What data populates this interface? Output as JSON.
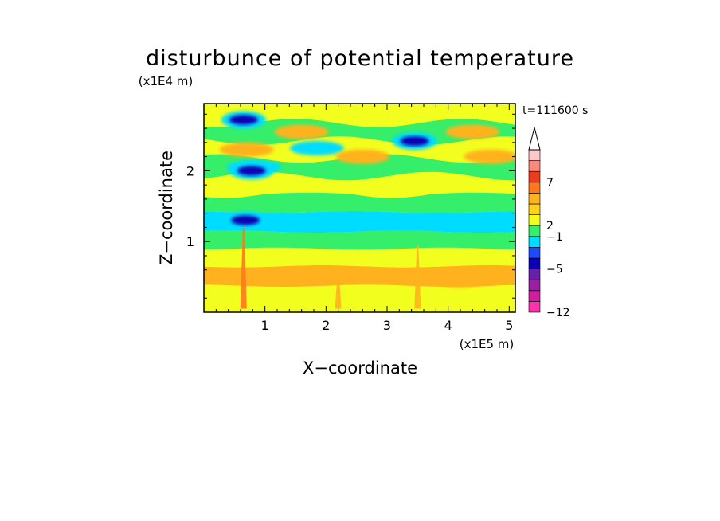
{
  "chart_data": {
    "type": "heatmap",
    "title": "disturbunce of potential temperature",
    "time_label": "t=111600 s",
    "xlabel": "X−coordinate",
    "ylabel": "Z−coordinate",
    "x_unit": "(x1E5 m)",
    "y_unit": "(x1E4 m)",
    "xlim": [
      0,
      5.1
    ],
    "ylim": [
      0,
      2.95
    ],
    "x_ticks": [
      1,
      2,
      3,
      4,
      5
    ],
    "y_ticks": [
      1,
      2
    ],
    "colorbar": {
      "labels": [
        "7",
        "2",
        "−1",
        "−5",
        "−12"
      ],
      "colors": [
        "#ff33aa",
        "#d21e9c",
        "#9b1fa0",
        "#6a1fa8",
        "#0b00b4",
        "#1e49ff",
        "#00dcff",
        "#35ee6a",
        "#f2ff1e",
        "#ffd21e",
        "#ffb21e",
        "#ff781e",
        "#ee3a1e",
        "#f78a7a",
        "#ffc8c8"
      ],
      "extend": "max"
    },
    "bands": [
      {
        "z": 0.08,
        "value": 0.8
      },
      {
        "z": 0.25,
        "value": 1.4
      },
      {
        "z": 0.5,
        "value": 2.2
      },
      {
        "z": 0.8,
        "value": 0.6
      },
      {
        "z": 1.0,
        "value": -0.3
      },
      {
        "z": 1.28,
        "value": -0.8
      },
      {
        "z": 1.55,
        "value": 0.4
      },
      {
        "z": 1.8,
        "value": 0.9
      },
      {
        "z": 2.05,
        "value": 0.2
      },
      {
        "z": 2.3,
        "value": 1.2
      },
      {
        "z": 2.55,
        "value": 0.3
      },
      {
        "z": 2.8,
        "value": 0.5
      }
    ],
    "anomalies": [
      {
        "x": 0.65,
        "z": 2.72,
        "value": -4.5
      },
      {
        "x": 0.7,
        "z": 2.3,
        "value": 2.4
      },
      {
        "x": 0.82,
        "z": 2.05,
        "value": -1.5
      },
      {
        "x": 0.78,
        "z": 2.0,
        "value": -5
      },
      {
        "x": 1.6,
        "z": 2.55,
        "value": 2.2
      },
      {
        "x": 1.85,
        "z": 2.32,
        "value": -0.6
      },
      {
        "x": 3.45,
        "z": 2.42,
        "value": -4.2
      },
      {
        "x": 2.6,
        "z": 2.2,
        "value": 2.1
      },
      {
        "x": 4.4,
        "z": 2.55,
        "value": 2.2
      },
      {
        "x": 4.7,
        "z": 2.2,
        "value": 2.1
      },
      {
        "x": 0.68,
        "z": 1.3,
        "value": -5
      },
      {
        "x": 0.45,
        "z": 0.5,
        "value": 2.6
      },
      {
        "x": 4.2,
        "z": 0.45,
        "value": 2.3
      }
    ],
    "plumes": [
      {
        "x": 0.65,
        "z_bottom": 0.05,
        "z_top": 1.2,
        "value": 4
      },
      {
        "x": 2.2,
        "z_bottom": 0.05,
        "z_top": 0.55,
        "value": 2.5
      },
      {
        "x": 3.5,
        "z_bottom": 0.05,
        "z_top": 0.95,
        "value": 2.5
      }
    ]
  }
}
